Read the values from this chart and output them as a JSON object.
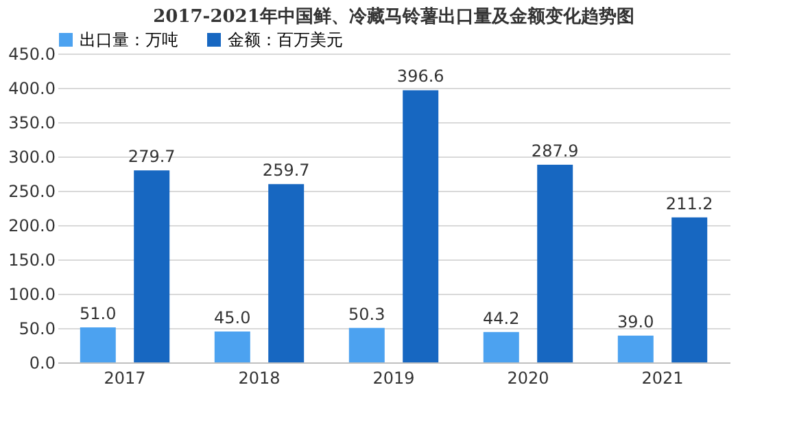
{
  "chart_data": {
    "type": "bar",
    "title": "2017-2021年中国鲜、冷藏马铃薯出口量及金额变化趋势图",
    "categories": [
      "2017",
      "2018",
      "2019",
      "2020",
      "2021"
    ],
    "series": [
      {
        "name": "出口量：万吨",
        "color": "#4ca2f0",
        "values": [
          51.0,
          45.0,
          50.3,
          44.2,
          39.0
        ],
        "value_labels": [
          "51.0",
          "45.0",
          "50.3",
          "44.2",
          "39.0"
        ]
      },
      {
        "name": "金额：百万美元",
        "color": "#1767c1",
        "values": [
          279.7,
          259.7,
          396.6,
          287.9,
          211.2
        ],
        "value_labels": [
          "279.7",
          "259.7",
          "396.6",
          "287.9",
          "211.2"
        ]
      }
    ],
    "ylim": [
      0,
      450
    ],
    "yticks": [
      {
        "value": 0,
        "label": "0.0"
      },
      {
        "value": 50,
        "label": "50.0"
      },
      {
        "value": 100,
        "label": "100.0"
      },
      {
        "value": 150,
        "label": "150.0"
      },
      {
        "value": 200,
        "label": "200.0"
      },
      {
        "value": 250,
        "label": "250.0"
      },
      {
        "value": 300,
        "label": "300.0"
      },
      {
        "value": 350,
        "label": "350.0"
      },
      {
        "value": 400,
        "label": "400.0"
      },
      {
        "value": 450,
        "label": "450.0"
      }
    ],
    "grid": "y",
    "legend": "top"
  }
}
